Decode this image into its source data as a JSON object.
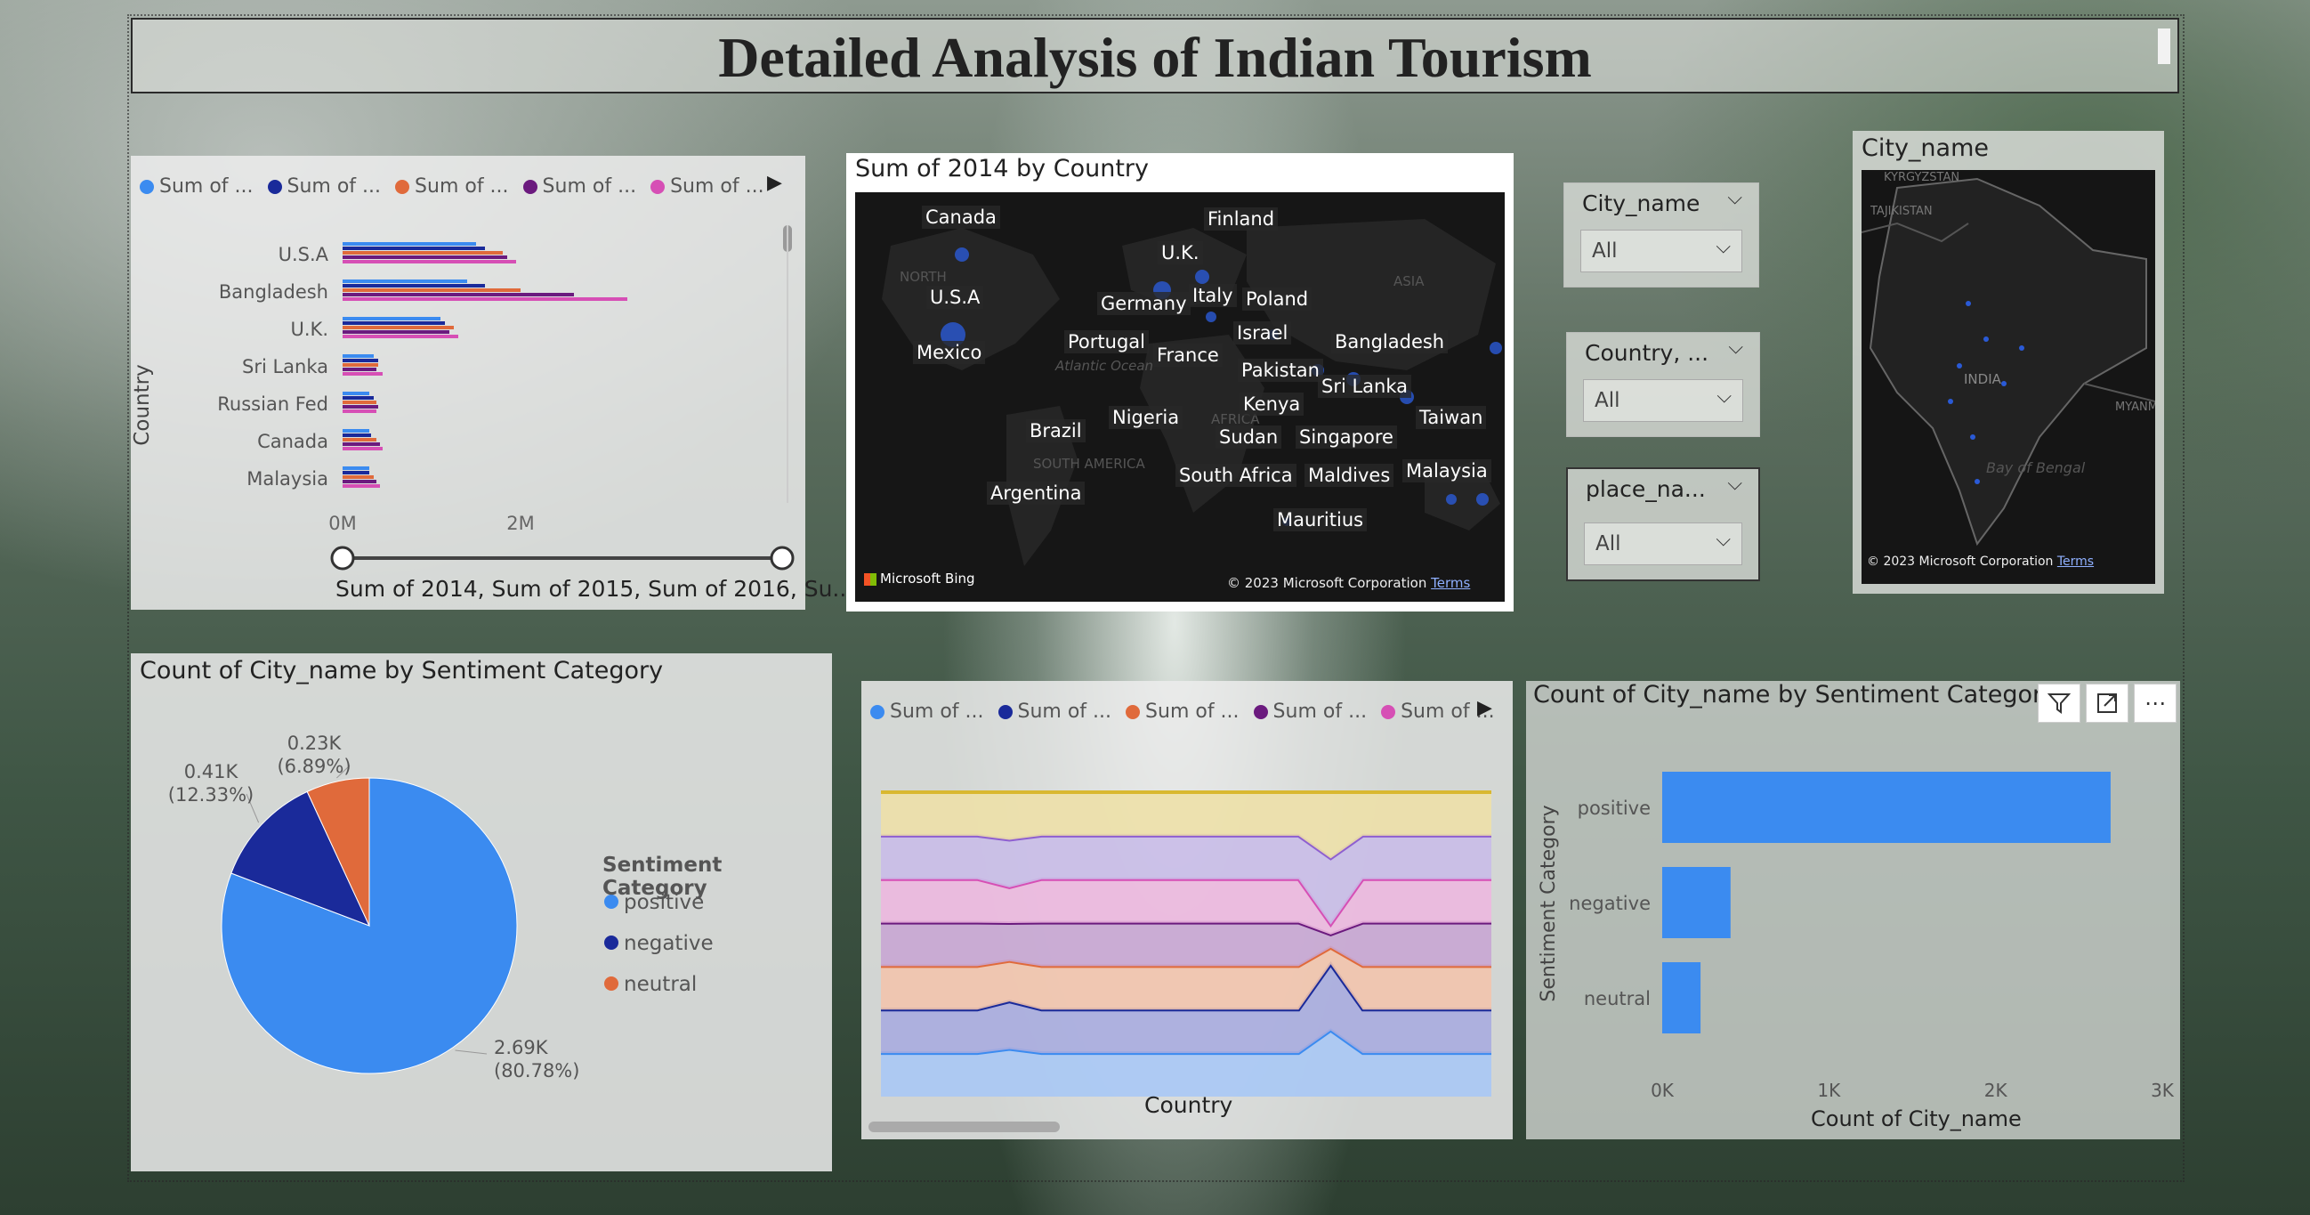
{
  "header": {
    "title": "Detailed Analysis of Indian Tourism"
  },
  "colors": {
    "blue": "#3b8bf0",
    "navy": "#1a2a9a",
    "orange": "#e06a3b",
    "purple": "#6b1a7e",
    "pink": "#d64fb5"
  },
  "bar_chart": {
    "legend": [
      "Sum of ...",
      "Sum of ...",
      "Sum of ...",
      "Sum of ...",
      "Sum of ..."
    ],
    "ylabel": "Country",
    "x_ticks": [
      "0M",
      "2M"
    ],
    "slider_label": "Sum of 2014, Sum of 2015, Sum of 2016, Su..."
  },
  "map1": {
    "title": "Sum of 2014 by Country",
    "labels": [
      "Canada",
      "Finland",
      "U.K.",
      "U.S.A",
      "Germany",
      "Italy",
      "Poland",
      "Mexico",
      "Portugal",
      "France",
      "Israel",
      "Bangladesh",
      "Pakistan",
      "Sri Lanka",
      "Kenya",
      "Nigeria",
      "Brazil",
      "Sudan",
      "Singapore",
      "Taiwan",
      "South Africa",
      "Maldives",
      "Malaysia",
      "Argentina",
      "Mauritius"
    ],
    "bing": "Microsoft Bing",
    "copyright": "© 2023 Microsoft Corporation",
    "terms": "Terms",
    "regions": [
      "NORTH",
      "ASIA",
      "AFRICA",
      "SOUTH AMERICA",
      "Atlantic Ocean"
    ]
  },
  "slicers": [
    {
      "label": "City_name",
      "value": "All"
    },
    {
      "label": "Country, ...",
      "value": "All"
    },
    {
      "label": "place_na...",
      "value": "All"
    }
  ],
  "map2": {
    "title": "City_name",
    "labels": [
      "KYRGYZSTAN",
      "TAJIKISTAN",
      "INDIA",
      "MYANMA",
      "Bay of Bengal"
    ],
    "copyright": "© 2023 Microsoft Corporation",
    "terms": "Terms"
  },
  "pie": {
    "title": "Count of City_name by Sentiment Category",
    "legend_title": "Sentiment Category",
    "labels": [
      {
        "value": "2.69K",
        "pct": "(80.78%)"
      },
      {
        "value": "0.41K",
        "pct": "(12.33%)"
      },
      {
        "value": "0.23K",
        "pct": "(6.89%)"
      }
    ]
  },
  "area_chart": {
    "legend": [
      "Sum of ...",
      "Sum of ...",
      "Sum of ...",
      "Sum of ...",
      "Sum of ..."
    ],
    "xlabel": "Country"
  },
  "bar2": {
    "title": "Count of City_name by Sentiment Category",
    "ylabel": "Sentiment Category",
    "xlabel": "Count of City_name",
    "x_ticks": [
      "0K",
      "1K",
      "2K",
      "3K"
    ]
  },
  "chart_data": [
    {
      "type": "bar",
      "orientation": "horizontal",
      "categories": [
        "U.S.A",
        "Bangladesh",
        "U.K.",
        "Sri Lanka",
        "Russian Fed",
        "Canada",
        "Malaysia"
      ],
      "series": [
        {
          "values": [
            1.5,
            1.4,
            1.1,
            0.35,
            0.3,
            0.3,
            0.3
          ]
        },
        {
          "values": [
            1.6,
            1.6,
            1.15,
            0.4,
            0.35,
            0.32,
            0.3
          ]
        },
        {
          "values": [
            1.8,
            2.0,
            1.25,
            0.4,
            0.38,
            0.38,
            0.35
          ]
        },
        {
          "values": [
            1.85,
            2.6,
            1.2,
            0.38,
            0.4,
            0.42,
            0.38
          ]
        },
        {
          "values": [
            1.95,
            3.2,
            1.3,
            0.45,
            0.38,
            0.45,
            0.42
          ]
        }
      ],
      "xlabel": "",
      "ylabel": "Country",
      "xlim": [
        0,
        4
      ]
    },
    {
      "type": "pie",
      "categories": [
        "positive",
        "negative",
        "neutral"
      ],
      "values": [
        2690,
        410,
        230
      ],
      "percents": [
        80.78,
        12.33,
        6.89
      ]
    },
    {
      "type": "area",
      "series": [
        {
          "values": [
            1,
            1,
            1,
            1,
            1,
            1,
            1,
            1,
            1,
            1,
            1,
            1,
            1,
            1,
            1,
            1,
            1,
            1,
            1,
            1
          ]
        },
        {
          "values": [
            1,
            1,
            1,
            1,
            1,
            1,
            1,
            1,
            1,
            1,
            1,
            1,
            1,
            1,
            1,
            1,
            1,
            1,
            1,
            1
          ]
        },
        {
          "values": [
            1,
            1,
            1,
            1,
            0.85,
            1,
            1,
            1,
            1,
            1,
            1,
            1,
            1,
            1,
            0.25,
            1,
            1,
            1,
            1,
            1
          ]
        },
        {
          "values": [
            1,
            1,
            1,
            1,
            0.8,
            1,
            1,
            1,
            1,
            1,
            1,
            1,
            1,
            1,
            0.2,
            1,
            1,
            1,
            1,
            1
          ]
        },
        {
          "values": [
            1,
            1,
            1,
            1,
            0.75,
            1,
            1,
            1,
            1,
            1,
            1,
            1,
            1,
            1,
            0.15,
            1,
            1,
            1,
            1,
            1
          ]
        }
      ],
      "xlabel": "Country"
    },
    {
      "type": "bar",
      "orientation": "horizontal",
      "categories": [
        "positive",
        "negative",
        "neutral"
      ],
      "values": [
        2690,
        410,
        230
      ],
      "xlabel": "Count of City_name",
      "ylabel": "Sentiment Category",
      "xlim": [
        0,
        3000
      ]
    }
  ]
}
